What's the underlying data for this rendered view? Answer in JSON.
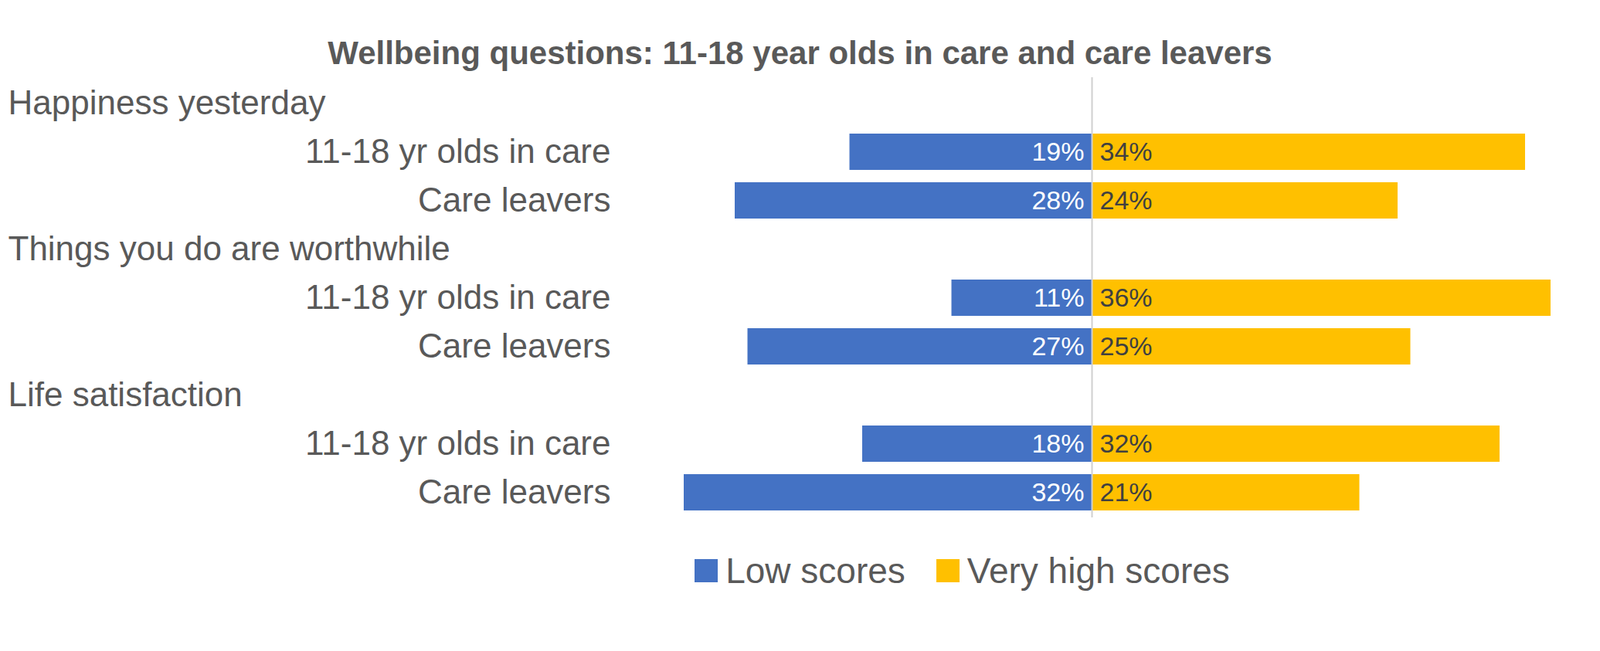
{
  "chart_data": {
    "type": "bar",
    "orientation": "horizontal",
    "title": "Wellbeing questions: 11-18 year olds in care and care leavers",
    "groups": [
      {
        "label": "Happiness yesterday",
        "categories": [
          "11-18 yr olds in care",
          "Care leavers"
        ]
      },
      {
        "label": "Things you do are worthwhile",
        "categories": [
          "11-18 yr olds in care",
          "Care leavers"
        ]
      },
      {
        "label": "Life satisfaction",
        "categories": [
          "11-18 yr olds in care",
          "Care leavers"
        ]
      }
    ],
    "series": [
      {
        "name": "Low scores",
        "color": "#4472c4",
        "values": [
          19,
          28,
          11,
          27,
          18,
          32
        ],
        "value_labels": [
          "19%",
          "28%",
          "11%",
          "27%",
          "18%",
          "32%"
        ]
      },
      {
        "name": "Very high scores",
        "color": "#ffc000",
        "values": [
          34,
          24,
          36,
          25,
          32,
          21
        ],
        "value_labels": [
          "34%",
          "24%",
          "36%",
          "25%",
          "32%",
          "21%"
        ]
      }
    ],
    "data_labels": true,
    "tick_labels": false,
    "legend": "bottom"
  }
}
